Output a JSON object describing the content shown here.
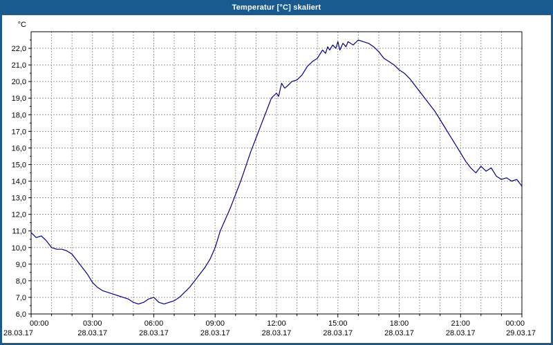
{
  "window": {
    "title": "Temperatur [°C] skaliert",
    "title_bar_color": "#1a5a8e",
    "frame_color": "#1a5a8e"
  },
  "chart_data": {
    "type": "line",
    "title": "Temperatur [°C] skaliert",
    "ylabel": "°C",
    "xlabel": "",
    "ylim": [
      6,
      23
    ],
    "xlim": [
      0,
      24
    ],
    "grid": "dashed",
    "legend": "none",
    "line_color": "#000080",
    "grid_color": "#999999",
    "axis_color": "#000000",
    "y_tick_values": [
      6,
      7,
      8,
      9,
      10,
      11,
      12,
      13,
      14,
      15,
      16,
      17,
      18,
      19,
      20,
      21,
      22
    ],
    "y_tick_labels": [
      "6,0",
      "7,0",
      "8,0",
      "9,0",
      "10,0",
      "11,0",
      "12,0",
      "13,0",
      "14,0",
      "15,0",
      "16,0",
      "17,0",
      "18,0",
      "19,0",
      "20,0",
      "21,0",
      "22,0"
    ],
    "x_ticks": [
      {
        "hour": 0,
        "time": "00:00",
        "date": "28.03.17"
      },
      {
        "hour": 3,
        "time": "03:00",
        "date": "28.03.17"
      },
      {
        "hour": 6,
        "time": "06:00",
        "date": "28.03.17"
      },
      {
        "hour": 9,
        "time": "09:00",
        "date": "28.03.17"
      },
      {
        "hour": 12,
        "time": "12:00",
        "date": "28.03.17"
      },
      {
        "hour": 15,
        "time": "15:00",
        "date": "28.03.17"
      },
      {
        "hour": 18,
        "time": "18:00",
        "date": "28.03.17"
      },
      {
        "hour": 21,
        "time": "21:00",
        "date": "28.03.17"
      },
      {
        "hour": 24,
        "time": "00:00",
        "date": "29.03.17"
      }
    ],
    "x": [
      0,
      0.25,
      0.5,
      0.75,
      1,
      1.25,
      1.5,
      1.75,
      2,
      2.25,
      2.5,
      2.75,
      3,
      3.25,
      3.5,
      3.75,
      4,
      4.25,
      4.5,
      4.75,
      5,
      5.25,
      5.5,
      5.75,
      6,
      6.25,
      6.5,
      6.75,
      7,
      7.25,
      7.5,
      7.75,
      8,
      8.25,
      8.5,
      8.75,
      9,
      9.25,
      9.5,
      9.75,
      10,
      10.25,
      10.5,
      10.75,
      11,
      11.25,
      11.5,
      11.75,
      12,
      12.1,
      12.25,
      12.4,
      12.5,
      12.75,
      13,
      13.25,
      13.5,
      13.75,
      14,
      14.1,
      14.25,
      14.4,
      14.5,
      14.6,
      14.75,
      14.9,
      15,
      15.1,
      15.25,
      15.4,
      15.5,
      15.75,
      16,
      16.25,
      16.5,
      16.75,
      17,
      17.25,
      17.5,
      17.75,
      18,
      18.25,
      18.5,
      18.75,
      19,
      19.25,
      19.5,
      19.75,
      20,
      20.25,
      20.5,
      20.75,
      21,
      21.25,
      21.5,
      21.75,
      22,
      22.25,
      22.5,
      22.75,
      23,
      23.25,
      23.5,
      23.75,
      24
    ],
    "y": [
      10.9,
      10.6,
      10.7,
      10.4,
      10.0,
      9.9,
      9.9,
      9.8,
      9.6,
      9.2,
      8.8,
      8.4,
      7.9,
      7.6,
      7.4,
      7.3,
      7.2,
      7.1,
      7.0,
      6.9,
      6.7,
      6.6,
      6.7,
      6.9,
      7.0,
      6.7,
      6.6,
      6.7,
      6.8,
      7.0,
      7.3,
      7.6,
      8.0,
      8.4,
      8.8,
      9.3,
      10.0,
      11.0,
      11.7,
      12.4,
      13.2,
      14.0,
      14.9,
      15.8,
      16.6,
      17.4,
      18.2,
      19.0,
      19.3,
      19.1,
      19.9,
      19.6,
      19.7,
      20.0,
      20.1,
      20.4,
      20.9,
      21.2,
      21.4,
      21.6,
      21.9,
      21.7,
      22.1,
      21.9,
      22.2,
      22.0,
      22.4,
      21.9,
      22.3,
      22.1,
      22.4,
      22.2,
      22.5,
      22.4,
      22.3,
      22.1,
      21.8,
      21.4,
      21.2,
      21.0,
      20.7,
      20.5,
      20.2,
      19.8,
      19.4,
      19.0,
      18.6,
      18.2,
      17.7,
      17.2,
      16.7,
      16.2,
      15.7,
      15.2,
      14.8,
      14.5,
      14.9,
      14.6,
      14.8,
      14.3,
      14.1,
      14.2,
      14.0,
      14.1,
      13.7
    ]
  }
}
